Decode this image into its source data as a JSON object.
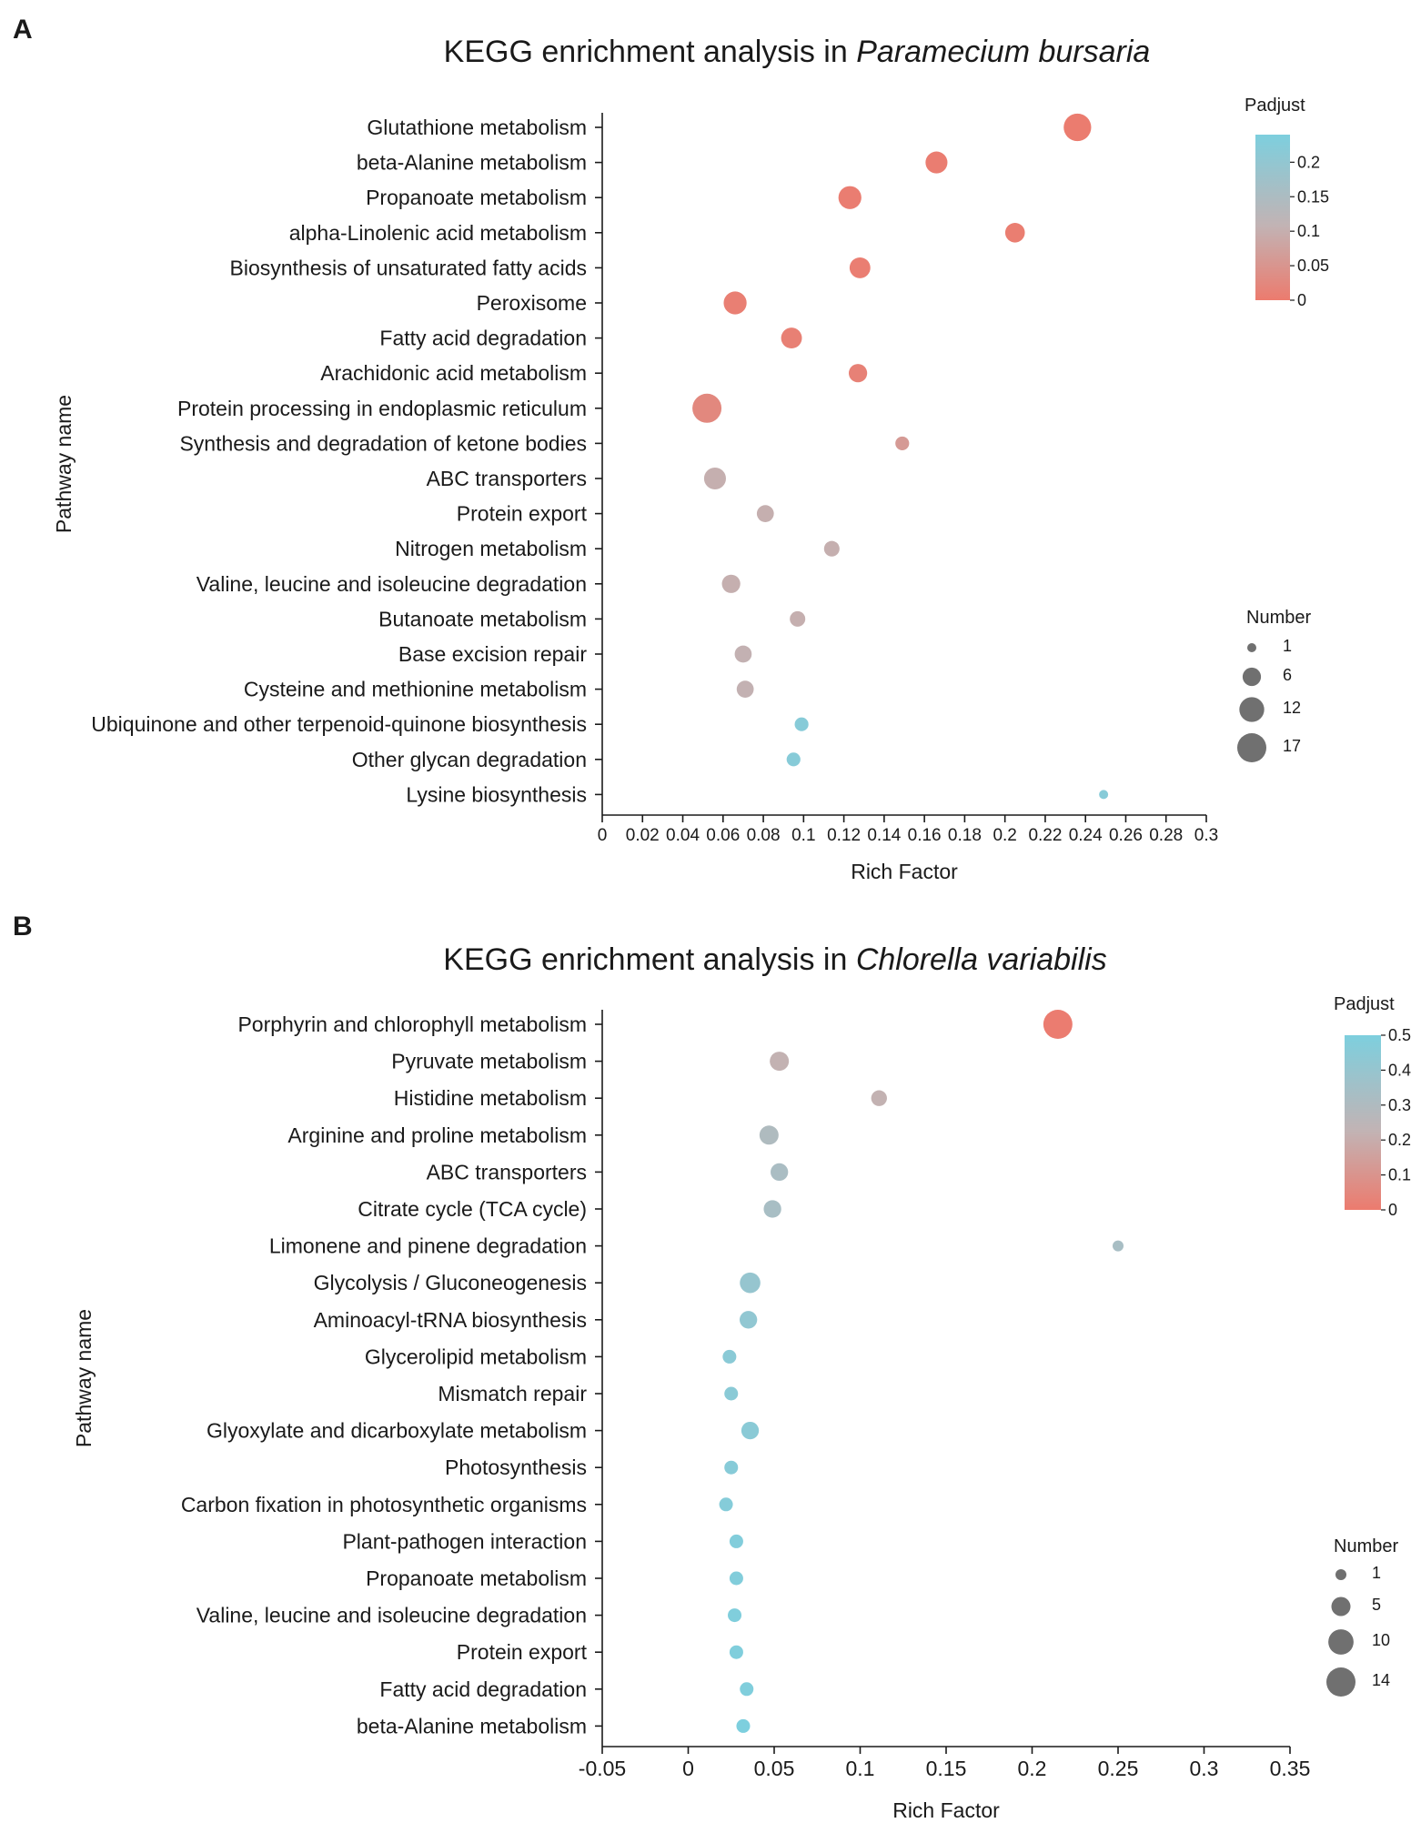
{
  "chart_data": [
    {
      "panel": "A",
      "type": "scatter",
      "title_prefix": "KEGG enrichment analysis in ",
      "title_species": "Paramecium bursaria",
      "xlabel": "Rich Factor",
      "ylabel": "Pathway name",
      "xlim": [
        0,
        0.3
      ],
      "xticks": [
        "0",
        "0.02",
        "0.04",
        "0.06",
        "0.08",
        "0.1",
        "0.12",
        "0.14",
        "0.16",
        "0.18",
        "0.2",
        "0.22",
        "0.24",
        "0.26",
        "0.28",
        "0.3"
      ],
      "color_legend": {
        "title": "Padjust",
        "range": [
          0,
          0.24
        ],
        "ticks": [
          "0.2",
          "0.15",
          "0.1",
          "0.05",
          "0"
        ],
        "low_color": "#ec7b6e",
        "mid_color": "#c2b3b4",
        "high_color": "#7dcfde"
      },
      "size_legend": {
        "title": "Number",
        "values": [
          "1",
          "6",
          "12",
          "17"
        ],
        "range": [
          1,
          17
        ]
      },
      "pathways": [
        {
          "name": "Glutathione metabolism",
          "rich_factor": 0.236,
          "padjust": 0.002,
          "number": 15
        },
        {
          "name": "beta-Alanine metabolism",
          "rich_factor": 0.166,
          "padjust": 0.004,
          "number": 9
        },
        {
          "name": "Propanoate metabolism",
          "rich_factor": 0.123,
          "padjust": 0.004,
          "number": 10
        },
        {
          "name": "alpha-Linolenic acid metabolism",
          "rich_factor": 0.205,
          "padjust": 0.005,
          "number": 7
        },
        {
          "name": "Biosynthesis of unsaturated fatty acids",
          "rich_factor": 0.128,
          "padjust": 0.006,
          "number": 8
        },
        {
          "name": "Peroxisome",
          "rich_factor": 0.066,
          "padjust": 0.008,
          "number": 10
        },
        {
          "name": "Fatty acid degradation",
          "rich_factor": 0.094,
          "padjust": 0.01,
          "number": 8
        },
        {
          "name": "Arachidonic acid metabolism",
          "rich_factor": 0.127,
          "padjust": 0.012,
          "number": 6
        },
        {
          "name": "Protein processing in endoplasmic reticulum",
          "rich_factor": 0.052,
          "padjust": 0.025,
          "number": 17
        },
        {
          "name": "Synthesis and degradation of ketone bodies",
          "rich_factor": 0.149,
          "padjust": 0.06,
          "number": 3
        },
        {
          "name": "ABC transporters",
          "rich_factor": 0.056,
          "padjust": 0.1,
          "number": 9
        },
        {
          "name": "Protein export",
          "rich_factor": 0.081,
          "padjust": 0.1,
          "number": 5
        },
        {
          "name": "Nitrogen metabolism",
          "rich_factor": 0.114,
          "padjust": 0.1,
          "number": 4
        },
        {
          "name": "Valine, leucine and isoleucine degradation",
          "rich_factor": 0.064,
          "padjust": 0.1,
          "number": 6
        },
        {
          "name": "Butanoate metabolism",
          "rich_factor": 0.097,
          "padjust": 0.1,
          "number": 4
        },
        {
          "name": "Base excision repair",
          "rich_factor": 0.07,
          "padjust": 0.105,
          "number": 5
        },
        {
          "name": "Cysteine and methionine metabolism",
          "rich_factor": 0.071,
          "padjust": 0.105,
          "number": 5
        },
        {
          "name": "Ubiquinone and other terpenoid-quinone biosynthesis",
          "rich_factor": 0.099,
          "padjust": 0.22,
          "number": 3
        },
        {
          "name": "Other glycan degradation",
          "rich_factor": 0.095,
          "padjust": 0.22,
          "number": 3
        },
        {
          "name": "Lysine biosynthesis",
          "rich_factor": 0.249,
          "padjust": 0.22,
          "number": 1
        }
      ]
    },
    {
      "panel": "B",
      "type": "scatter",
      "title_prefix": "KEGG enrichment analysis in ",
      "title_species": "Chlorella variabilis",
      "xlabel": "Rich Factor",
      "ylabel": "Pathway name",
      "xlim": [
        -0.05,
        0.35
      ],
      "xticks": [
        "-0.05",
        "0",
        "0.05",
        "0.1",
        "0.15",
        "0.2",
        "0.25",
        "0.3",
        "0.35"
      ],
      "color_legend": {
        "title": "Padjust",
        "range": [
          0,
          0.5
        ],
        "ticks": [
          "0.5",
          "0.4",
          "0.3",
          "0.2",
          "0.1",
          "0"
        ],
        "low_color": "#ec7b6e",
        "mid_color": "#c2b3b4",
        "high_color": "#7dcfde"
      },
      "size_legend": {
        "title": "Number",
        "values": [
          "1",
          "5",
          "10",
          "14"
        ],
        "range": [
          1,
          14
        ]
      },
      "pathways": [
        {
          "name": "Porphyrin and chlorophyll metabolism",
          "rich_factor": 0.215,
          "padjust": 0.005,
          "number": 14
        },
        {
          "name": "Pyruvate metabolism",
          "rich_factor": 0.053,
          "padjust": 0.22,
          "number": 5
        },
        {
          "name": "Histidine metabolism",
          "rich_factor": 0.111,
          "padjust": 0.22,
          "number": 3
        },
        {
          "name": "Arginine and proline metabolism",
          "rich_factor": 0.047,
          "padjust": 0.3,
          "number": 5
        },
        {
          "name": "ABC transporters",
          "rich_factor": 0.053,
          "padjust": 0.32,
          "number": 4
        },
        {
          "name": "Citrate cycle (TCA cycle)",
          "rich_factor": 0.049,
          "padjust": 0.33,
          "number": 4
        },
        {
          "name": "Limonene and pinene degradation",
          "rich_factor": 0.25,
          "padjust": 0.33,
          "number": 1
        },
        {
          "name": "Glycolysis / Gluconeogenesis",
          "rich_factor": 0.036,
          "padjust": 0.4,
          "number": 6
        },
        {
          "name": "Aminoacyl-tRNA biosynthesis",
          "rich_factor": 0.035,
          "padjust": 0.42,
          "number": 4
        },
        {
          "name": "Glycerolipid metabolism",
          "rich_factor": 0.024,
          "padjust": 0.45,
          "number": 2
        },
        {
          "name": "Mismatch repair",
          "rich_factor": 0.025,
          "padjust": 0.45,
          "number": 2
        },
        {
          "name": "Glyoxylate and dicarboxylate metabolism",
          "rich_factor": 0.036,
          "padjust": 0.45,
          "number": 4
        },
        {
          "name": "Photosynthesis",
          "rich_factor": 0.025,
          "padjust": 0.46,
          "number": 2
        },
        {
          "name": "Carbon fixation in photosynthetic organisms",
          "rich_factor": 0.022,
          "padjust": 0.47,
          "number": 2
        },
        {
          "name": "Plant-pathogen interaction",
          "rich_factor": 0.028,
          "padjust": 0.48,
          "number": 2
        },
        {
          "name": "Propanoate metabolism",
          "rich_factor": 0.028,
          "padjust": 0.48,
          "number": 2
        },
        {
          "name": "Valine, leucine and isoleucine degradation",
          "rich_factor": 0.027,
          "padjust": 0.49,
          "number": 2
        },
        {
          "name": "Protein export",
          "rich_factor": 0.028,
          "padjust": 0.49,
          "number": 2
        },
        {
          "name": "Fatty acid degradation",
          "rich_factor": 0.034,
          "padjust": 0.49,
          "number": 2
        },
        {
          "name": "beta-Alanine metabolism",
          "rich_factor": 0.032,
          "padjust": 0.5,
          "number": 2
        }
      ]
    }
  ]
}
